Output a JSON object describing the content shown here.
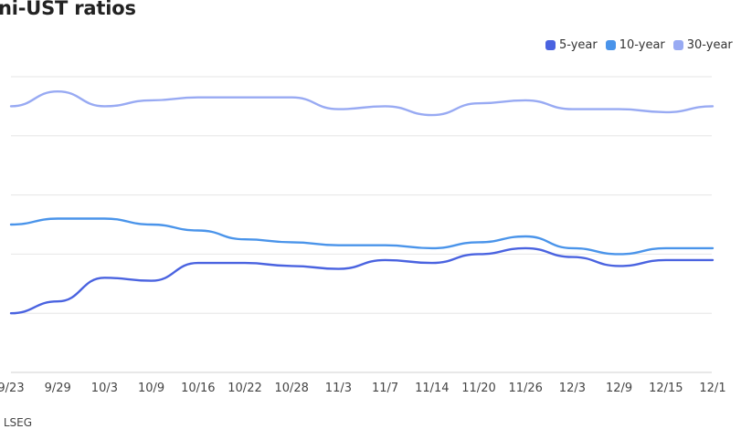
{
  "chart_data": {
    "type": "line",
    "title": "ni-UST ratios",
    "source": ": LSEG",
    "x_tick_labels": [
      "9/23",
      "9/29",
      "10/3",
      "10/9",
      "10/16",
      "10/22",
      "10/28",
      "11/3",
      "11/7",
      "11/14",
      "11/20",
      "11/26",
      "12/3",
      "12/9",
      "12/15",
      "12/1"
    ],
    "ylim": [
      0,
      1
    ],
    "grid": true,
    "legend_position": "top-right",
    "x": [
      "9/23",
      "9/29",
      "10/3",
      "10/9",
      "10/16",
      "10/22",
      "10/28",
      "11/3",
      "11/7",
      "11/14",
      "11/20",
      "11/26",
      "12/3",
      "12/9",
      "12/15",
      "12/1"
    ],
    "series": [
      {
        "name": "5-year",
        "color": "#4a63e0",
        "values": [
          0.2,
          0.24,
          0.32,
          0.31,
          0.37,
          0.37,
          0.36,
          0.35,
          0.38,
          0.37,
          0.4,
          0.42,
          0.39,
          0.36,
          0.38,
          0.38
        ]
      },
      {
        "name": "10-year",
        "color": "#4a94ea",
        "values": [
          0.5,
          0.52,
          0.52,
          0.5,
          0.48,
          0.45,
          0.44,
          0.43,
          0.43,
          0.42,
          0.44,
          0.46,
          0.42,
          0.4,
          0.42,
          0.42
        ]
      },
      {
        "name": "30-year",
        "color": "#98aaf3",
        "values": [
          0.9,
          0.95,
          0.9,
          0.92,
          0.93,
          0.93,
          0.93,
          0.89,
          0.9,
          0.87,
          0.91,
          0.92,
          0.89,
          0.89,
          0.88,
          0.9
        ]
      }
    ]
  }
}
